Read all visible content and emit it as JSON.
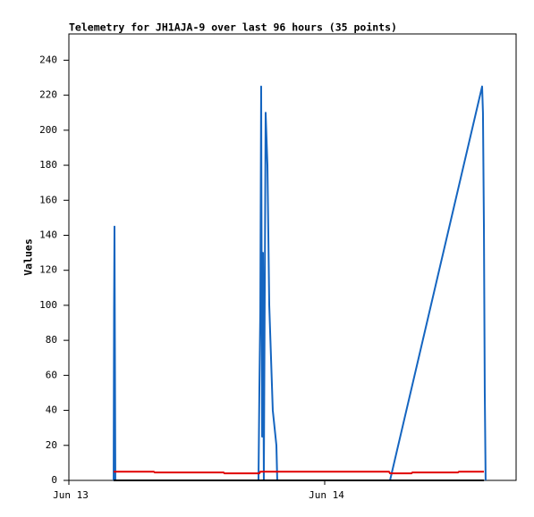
{
  "chart_data": {
    "type": "line",
    "title": "Telemetry for JH1AJA-9 over last 96 hours (35 points)",
    "y_label": "Values",
    "xlim": [
      0,
      41.96
    ],
    "xticks": [
      {
        "value": 0,
        "label": "Jun 13"
      },
      {
        "value": 24,
        "label": "Jun 14"
      }
    ],
    "ylim": [
      0,
      255
    ],
    "yticks": [
      0,
      20,
      40,
      60,
      80,
      100,
      120,
      140,
      160,
      180,
      200,
      220,
      240
    ],
    "grid": false,
    "series": [
      {
        "color": "#1565c0",
        "x": [
          4.2,
          4.24,
          4.28,
          4.36,
          17.79,
          17.87,
          17.96,
          18.04,
          18.13,
          18.21,
          18.29,
          18.46,
          18.63,
          18.8,
          19.13,
          19.47,
          19.55,
          30.13,
          38.77,
          38.85,
          38.94,
          39.02,
          39.1
        ],
        "values": [
          0,
          97,
          145,
          0,
          0,
          50,
          97,
          225,
          25,
          130,
          0,
          210,
          180,
          100,
          40,
          20,
          0,
          0,
          225,
          210,
          145,
          50,
          0
        ]
      },
      {
        "color": "#e00000",
        "x": [
          4.2,
          7.97,
          8.06,
          14.52,
          14.6,
          17.87,
          17.96,
          30.04,
          30.13,
          32.14,
          32.22,
          36.5,
          36.59,
          38.94
        ],
        "values": [
          5,
          5,
          4.5,
          4.5,
          4,
          4,
          5,
          5,
          4,
          4,
          4.5,
          4.5,
          5,
          5
        ]
      },
      {
        "color": "#000000",
        "x": [
          4.2,
          38.94
        ],
        "values": [
          0,
          0
        ]
      }
    ]
  }
}
